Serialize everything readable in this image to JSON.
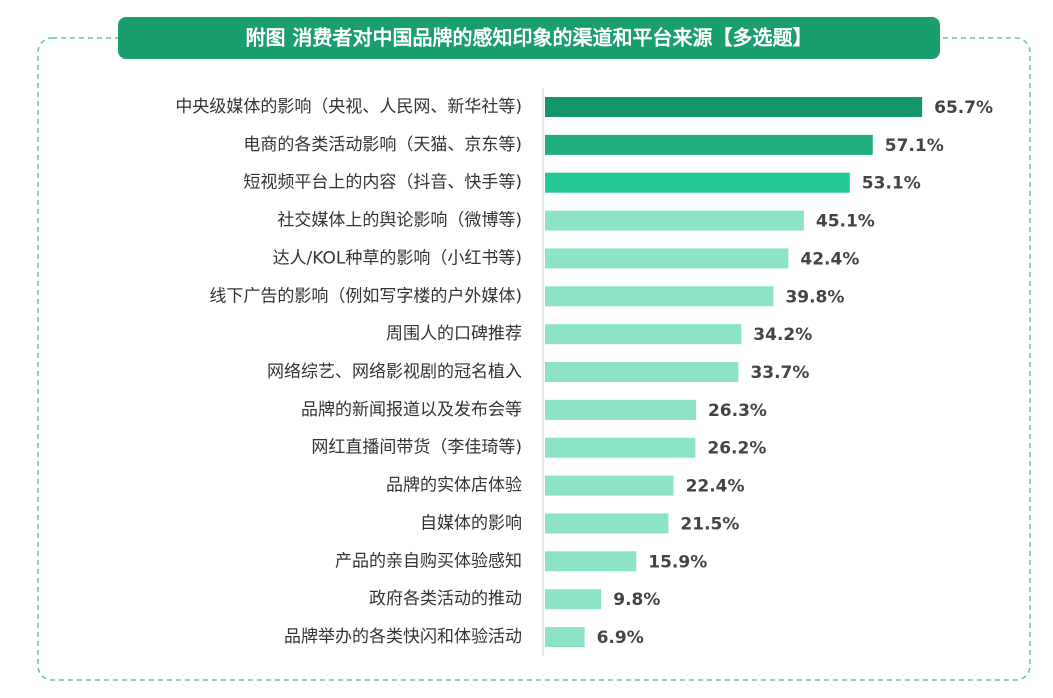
{
  "chart_data": {
    "type": "bar",
    "orientation": "horizontal",
    "title": "附图 消费者对中国品牌的感知印象的渠道和平台来源【多选题】",
    "categories": [
      "中央级媒体的影响（央视、人民网、新华社等)",
      "电商的各类活动影响（天猫、京东等)",
      "短视频平台上的内容（抖音、快手等)",
      "社交媒体上的舆论影响（微博等)",
      "达人/KOL种草的影响（小红书等)",
      "线下广告的影响（例如写字楼的户外媒体)",
      "周围人的口碑推荐",
      "网络综艺、网络影视剧的冠名植入",
      "品牌的新闻报道以及发布会等",
      "网红直播间带货（李佳琦等)",
      "品牌的实体店体验",
      "自媒体的影响",
      "产品的亲自购买体验感知",
      "政府各类活动的推动",
      "品牌举办的各类快闪和体验活动"
    ],
    "values": [
      65.7,
      57.1,
      53.1,
      45.1,
      42.4,
      39.8,
      34.2,
      33.7,
      26.3,
      26.2,
      22.4,
      21.5,
      15.9,
      9.8,
      6.9
    ],
    "value_labels": [
      "65.7%",
      "57.1%",
      "53.1%",
      "45.1%",
      "42.4%",
      "39.8%",
      "34.2%",
      "33.7%",
      "26.3%",
      "26.2%",
      "22.4%",
      "21.5%",
      "15.9%",
      "9.8%",
      "6.9%"
    ],
    "colors": [
      "#14956a",
      "#1fae7e",
      "#22c895",
      "#8ce3c6",
      "#8ce3c6",
      "#8ce3c6",
      "#8ce3c6",
      "#8ce3c6",
      "#8ce3c6",
      "#8ce3c6",
      "#8ce3c6",
      "#8ce3c6",
      "#8ce3c6",
      "#8ce3c6",
      "#8ce3c6"
    ]
  }
}
